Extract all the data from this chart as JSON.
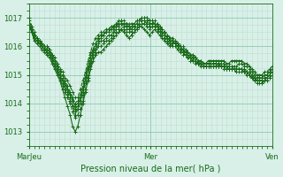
{
  "title": "",
  "xlabel": "Pression niveau de la mer( hPa )",
  "ylabel": "",
  "background_color": "#d8f0e8",
  "line_color": "#1a6b1a",
  "grid_color_major": "#b0d8c8",
  "grid_color_minor": "#c8e8d8",
  "ylim": [
    1012.5,
    1017.5
  ],
  "xlim": [
    0,
    96
  ],
  "yticks": [
    1013,
    1014,
    1015,
    1016,
    1017
  ],
  "xtick_positions": [
    0,
    48,
    96
  ],
  "xtick_labels": [
    "MarJeu",
    "Mer",
    "Ven"
  ],
  "series": [
    [
      1016.8,
      1016.5,
      1016.2,
      1016.1,
      1016.0,
      1015.9,
      1015.8,
      1015.7,
      1015.6,
      1015.4,
      1015.2,
      1015.0,
      1014.8,
      1014.5,
      1014.2,
      1013.9,
      1013.6,
      1013.2,
      1013.0,
      1013.2,
      1013.6,
      1014.0,
      1014.4,
      1014.8,
      1015.2,
      1015.5,
      1015.7,
      1015.8,
      1015.8,
      1015.9,
      1016.0,
      1016.1,
      1016.2,
      1016.3,
      1016.4,
      1016.5,
      1016.6,
      1016.5,
      1016.4,
      1016.3,
      1016.4,
      1016.5,
      1016.6,
      1016.7,
      1016.7,
      1016.6,
      1016.5,
      1016.4,
      1016.5,
      1016.6,
      1016.5,
      1016.4,
      1016.3,
      1016.2,
      1016.1,
      1016.0,
      1016.1,
      1016.2,
      1016.1,
      1016.0,
      1015.9,
      1015.8,
      1015.8,
      1015.7,
      1015.7,
      1015.6,
      1015.5,
      1015.5,
      1015.4,
      1015.4,
      1015.5,
      1015.5,
      1015.5,
      1015.5,
      1015.5,
      1015.5,
      1015.5,
      1015.4,
      1015.4,
      1015.5,
      1015.5,
      1015.5,
      1015.5,
      1015.5,
      1015.4,
      1015.4,
      1015.3,
      1015.2,
      1015.1,
      1015.0,
      1015.0,
      1015.0,
      1015.1,
      1015.1,
      1015.2,
      1015.3
    ],
    [
      1016.8,
      1016.5,
      1016.3,
      1016.2,
      1016.1,
      1016.0,
      1015.9,
      1015.8,
      1015.7,
      1015.5,
      1015.3,
      1015.1,
      1014.9,
      1014.6,
      1014.4,
      1014.2,
      1014.0,
      1013.7,
      1013.5,
      1013.6,
      1013.8,
      1014.1,
      1014.5,
      1014.9,
      1015.3,
      1015.6,
      1015.8,
      1016.0,
      1016.0,
      1016.1,
      1016.2,
      1016.2,
      1016.3,
      1016.4,
      1016.5,
      1016.5,
      1016.6,
      1016.6,
      1016.5,
      1016.5,
      1016.4,
      1016.5,
      1016.6,
      1016.7,
      1016.8,
      1016.8,
      1016.7,
      1016.6,
      1016.7,
      1016.7,
      1016.6,
      1016.5,
      1016.4,
      1016.3,
      1016.2,
      1016.1,
      1016.1,
      1016.1,
      1016.0,
      1015.9,
      1015.8,
      1015.7,
      1015.6,
      1015.6,
      1015.5,
      1015.5,
      1015.4,
      1015.4,
      1015.3,
      1015.3,
      1015.4,
      1015.4,
      1015.4,
      1015.4,
      1015.4,
      1015.4,
      1015.4,
      1015.3,
      1015.3,
      1015.3,
      1015.3,
      1015.3,
      1015.4,
      1015.4,
      1015.3,
      1015.3,
      1015.2,
      1015.1,
      1015.0,
      1014.9,
      1014.9,
      1014.9,
      1015.0,
      1015.0,
      1015.1,
      1015.2
    ],
    [
      1016.7,
      1016.5,
      1016.3,
      1016.2,
      1016.1,
      1016.0,
      1015.9,
      1015.9,
      1015.8,
      1015.6,
      1015.4,
      1015.2,
      1015.0,
      1014.8,
      1014.6,
      1014.4,
      1014.2,
      1013.9,
      1013.7,
      1013.8,
      1014.0,
      1014.3,
      1014.7,
      1015.0,
      1015.4,
      1015.7,
      1015.9,
      1016.1,
      1016.2,
      1016.2,
      1016.3,
      1016.4,
      1016.4,
      1016.5,
      1016.6,
      1016.6,
      1016.6,
      1016.7,
      1016.6,
      1016.6,
      1016.5,
      1016.6,
      1016.7,
      1016.8,
      1016.9,
      1016.9,
      1016.8,
      1016.7,
      1016.7,
      1016.7,
      1016.6,
      1016.5,
      1016.4,
      1016.3,
      1016.2,
      1016.1,
      1016.0,
      1016.0,
      1015.9,
      1015.8,
      1015.7,
      1015.7,
      1015.6,
      1015.5,
      1015.5,
      1015.4,
      1015.4,
      1015.3,
      1015.3,
      1015.3,
      1015.3,
      1015.3,
      1015.3,
      1015.3,
      1015.3,
      1015.3,
      1015.3,
      1015.3,
      1015.2,
      1015.2,
      1015.2,
      1015.2,
      1015.2,
      1015.2,
      1015.2,
      1015.1,
      1015.1,
      1015.0,
      1014.9,
      1014.8,
      1014.8,
      1014.8,
      1014.9,
      1014.9,
      1015.0,
      1015.1
    ],
    [
      1016.9,
      1016.6,
      1016.4,
      1016.3,
      1016.2,
      1016.1,
      1016.0,
      1015.9,
      1015.8,
      1015.7,
      1015.5,
      1015.3,
      1015.1,
      1014.9,
      1014.7,
      1014.5,
      1014.3,
      1014.1,
      1013.9,
      1014.0,
      1014.2,
      1014.5,
      1014.8,
      1015.2,
      1015.5,
      1015.8,
      1016.0,
      1016.2,
      1016.3,
      1016.4,
      1016.5,
      1016.5,
      1016.6,
      1016.7,
      1016.7,
      1016.8,
      1016.8,
      1016.7,
      1016.7,
      1016.6,
      1016.6,
      1016.7,
      1016.7,
      1016.8,
      1016.9,
      1016.9,
      1016.9,
      1016.8,
      1016.8,
      1016.8,
      1016.7,
      1016.6,
      1016.5,
      1016.4,
      1016.3,
      1016.2,
      1016.2,
      1016.1,
      1016.0,
      1015.9,
      1015.9,
      1015.8,
      1015.7,
      1015.6,
      1015.6,
      1015.5,
      1015.4,
      1015.4,
      1015.3,
      1015.3,
      1015.4,
      1015.4,
      1015.4,
      1015.4,
      1015.4,
      1015.3,
      1015.3,
      1015.3,
      1015.2,
      1015.2,
      1015.2,
      1015.2,
      1015.2,
      1015.2,
      1015.1,
      1015.1,
      1015.0,
      1014.9,
      1014.8,
      1014.8,
      1014.8,
      1014.7,
      1014.8,
      1014.8,
      1014.9,
      1015.0
    ],
    [
      1017.0,
      1016.7,
      1016.5,
      1016.3,
      1016.2,
      1016.1,
      1016.0,
      1016.0,
      1015.9,
      1015.7,
      1015.5,
      1015.3,
      1015.2,
      1015.0,
      1014.8,
      1014.6,
      1014.4,
      1014.2,
      1014.0,
      1014.1,
      1014.3,
      1014.6,
      1015.0,
      1015.3,
      1015.7,
      1015.9,
      1016.1,
      1016.3,
      1016.4,
      1016.5,
      1016.5,
      1016.6,
      1016.7,
      1016.7,
      1016.8,
      1016.8,
      1016.9,
      1016.8,
      1016.8,
      1016.7,
      1016.7,
      1016.8,
      1016.9,
      1016.9,
      1017.0,
      1017.0,
      1017.0,
      1016.9,
      1016.9,
      1016.8,
      1016.8,
      1016.7,
      1016.6,
      1016.5,
      1016.4,
      1016.3,
      1016.2,
      1016.2,
      1016.1,
      1016.0,
      1015.9,
      1015.8,
      1015.8,
      1015.7,
      1015.6,
      1015.6,
      1015.5,
      1015.4,
      1015.4,
      1015.4,
      1015.4,
      1015.4,
      1015.4,
      1015.4,
      1015.3,
      1015.3,
      1015.3,
      1015.2,
      1015.2,
      1015.2,
      1015.2,
      1015.1,
      1015.1,
      1015.1,
      1015.1,
      1015.0,
      1015.0,
      1014.9,
      1014.8,
      1014.7,
      1014.7,
      1014.7,
      1014.8,
      1014.8,
      1014.9,
      1015.0
    ],
    [
      1016.8,
      1016.6,
      1016.4,
      1016.3,
      1016.1,
      1016.0,
      1015.9,
      1015.8,
      1015.7,
      1015.6,
      1015.4,
      1015.2,
      1015.0,
      1014.8,
      1014.7,
      1014.5,
      1014.3,
      1014.1,
      1013.8,
      1013.9,
      1014.2,
      1014.5,
      1014.9,
      1015.3,
      1015.6,
      1015.9,
      1016.1,
      1016.3,
      1016.4,
      1016.4,
      1016.5,
      1016.6,
      1016.6,
      1016.7,
      1016.7,
      1016.8,
      1016.8,
      1016.8,
      1016.7,
      1016.7,
      1016.7,
      1016.7,
      1016.8,
      1016.9,
      1016.9,
      1016.9,
      1016.9,
      1016.8,
      1016.8,
      1016.8,
      1016.7,
      1016.6,
      1016.5,
      1016.4,
      1016.3,
      1016.2,
      1016.1,
      1016.1,
      1016.0,
      1015.9,
      1015.8,
      1015.8,
      1015.7,
      1015.6,
      1015.6,
      1015.5,
      1015.4,
      1015.4,
      1015.3,
      1015.3,
      1015.3,
      1015.3,
      1015.3,
      1015.3,
      1015.3,
      1015.3,
      1015.3,
      1015.2,
      1015.2,
      1015.2,
      1015.2,
      1015.2,
      1015.2,
      1015.2,
      1015.1,
      1015.1,
      1015.0,
      1014.9,
      1014.9,
      1014.8,
      1014.8,
      1014.8,
      1014.8,
      1014.9,
      1015.0,
      1015.1
    ],
    [
      1016.7,
      1016.5,
      1016.3,
      1016.2,
      1016.1,
      1016.0,
      1015.9,
      1015.8,
      1015.7,
      1015.5,
      1015.3,
      1015.1,
      1014.9,
      1014.7,
      1014.5,
      1014.3,
      1014.1,
      1013.9,
      1013.6,
      1013.8,
      1014.1,
      1014.4,
      1014.8,
      1015.2,
      1015.5,
      1015.8,
      1016.0,
      1016.2,
      1016.3,
      1016.4,
      1016.5,
      1016.5,
      1016.6,
      1016.6,
      1016.7,
      1016.7,
      1016.8,
      1016.8,
      1016.7,
      1016.7,
      1016.6,
      1016.7,
      1016.7,
      1016.8,
      1016.9,
      1016.9,
      1016.8,
      1016.8,
      1016.8,
      1016.8,
      1016.7,
      1016.6,
      1016.5,
      1016.4,
      1016.3,
      1016.2,
      1016.1,
      1016.1,
      1016.0,
      1015.9,
      1015.8,
      1015.7,
      1015.7,
      1015.6,
      1015.5,
      1015.5,
      1015.4,
      1015.4,
      1015.3,
      1015.3,
      1015.3,
      1015.3,
      1015.3,
      1015.3,
      1015.3,
      1015.3,
      1015.2,
      1015.2,
      1015.2,
      1015.2,
      1015.2,
      1015.2,
      1015.2,
      1015.2,
      1015.1,
      1015.1,
      1015.0,
      1014.9,
      1014.9,
      1014.8,
      1014.8,
      1014.8,
      1014.9,
      1014.9,
      1015.0,
      1015.1
    ],
    [
      1016.8,
      1016.6,
      1016.4,
      1016.3,
      1016.2,
      1016.1,
      1016.0,
      1016.0,
      1015.9,
      1015.7,
      1015.6,
      1015.4,
      1015.2,
      1015.1,
      1014.9,
      1014.8,
      1014.6,
      1014.4,
      1014.2,
      1014.2,
      1014.5,
      1014.8,
      1015.1,
      1015.5,
      1015.8,
      1016.1,
      1016.3,
      1016.4,
      1016.5,
      1016.5,
      1016.6,
      1016.6,
      1016.7,
      1016.7,
      1016.8,
      1016.9,
      1016.9,
      1016.9,
      1016.8,
      1016.8,
      1016.8,
      1016.8,
      1016.9,
      1016.9,
      1017.0,
      1017.0,
      1017.0,
      1016.9,
      1016.9,
      1016.9,
      1016.8,
      1016.7,
      1016.6,
      1016.5,
      1016.4,
      1016.3,
      1016.3,
      1016.2,
      1016.1,
      1016.0,
      1016.0,
      1015.9,
      1015.8,
      1015.7,
      1015.7,
      1015.6,
      1015.5,
      1015.5,
      1015.4,
      1015.4,
      1015.4,
      1015.4,
      1015.4,
      1015.4,
      1015.4,
      1015.3,
      1015.3,
      1015.3,
      1015.3,
      1015.3,
      1015.2,
      1015.2,
      1015.2,
      1015.2,
      1015.2,
      1015.1,
      1015.1,
      1015.0,
      1014.9,
      1014.9,
      1014.9,
      1014.9,
      1015.0,
      1015.0,
      1015.1,
      1015.2
    ]
  ],
  "special_series_idx": 0,
  "marker": "+",
  "markersize": 3,
  "linewidth": 0.8
}
